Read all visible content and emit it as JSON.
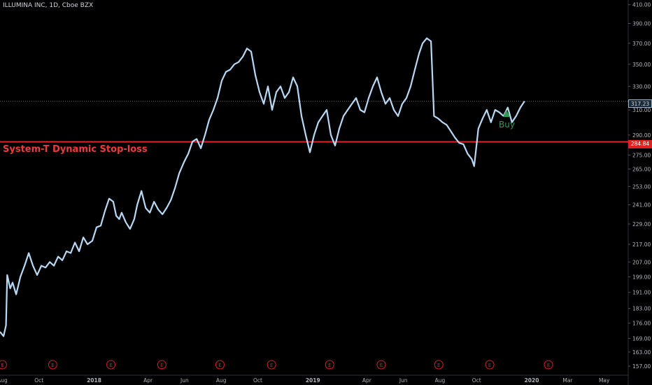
{
  "header": {
    "title": "ILLUMINA INC, 1D, Cboe BZX"
  },
  "annotations": {
    "stop_label": "System-T Dynamic Stop-loss",
    "buy_label": "Buy",
    "current_price_label": "317.23",
    "stop_price_label": "284.84"
  },
  "colors": {
    "background": "#000000",
    "price_line": "#b7d9f5",
    "stop_line": "#e02424",
    "buy": "#2e9e4f",
    "earnings": "#d22222",
    "axis_text": "#b2b5be"
  },
  "chart_data": {
    "type": "line",
    "title": "ILLUMINA INC, 1D, Cboe BZX",
    "xlabel": "",
    "ylabel": "",
    "scale": "log",
    "ylim": [
      155,
      412
    ],
    "xlim": [
      "2017-07-28",
      "2020-06-10"
    ],
    "x_ticks": [
      {
        "date": "2017-08-01",
        "label": "Aug"
      },
      {
        "date": "2017-10-01",
        "label": "Oct"
      },
      {
        "date": "2018-01-01",
        "label": "2018"
      },
      {
        "date": "2018-04-01",
        "label": "Apr"
      },
      {
        "date": "2018-06-01",
        "label": "Jun"
      },
      {
        "date": "2018-08-01",
        "label": "Aug"
      },
      {
        "date": "2018-10-01",
        "label": "Oct"
      },
      {
        "date": "2019-01-01",
        "label": "2019"
      },
      {
        "date": "2019-04-01",
        "label": "Apr"
      },
      {
        "date": "2019-06-01",
        "label": "Jun"
      },
      {
        "date": "2019-08-01",
        "label": "Aug"
      },
      {
        "date": "2019-10-01",
        "label": "Oct"
      },
      {
        "date": "2020-01-01",
        "label": "2020"
      },
      {
        "date": "2020-03-01",
        "label": "Mar"
      },
      {
        "date": "2020-05-01",
        "label": "May"
      }
    ],
    "y_ticks": [
      157.0,
      163.0,
      169.0,
      176.0,
      183.0,
      191.0,
      199.0,
      207.0,
      217.0,
      229.0,
      241.0,
      253.0,
      265.0,
      275.0,
      290.0,
      310.0,
      330.0,
      350.0,
      370.0,
      390.0,
      410.0
    ],
    "series": [
      {
        "values": [
          [
            "2017-07-28",
            172
          ],
          [
            "2017-08-03",
            170
          ],
          [
            "2017-08-07",
            175
          ],
          [
            "2017-08-09",
            200
          ],
          [
            "2017-08-14",
            193
          ],
          [
            "2017-08-18",
            196
          ],
          [
            "2017-08-24",
            190
          ],
          [
            "2017-08-31",
            199
          ],
          [
            "2017-09-07",
            205
          ],
          [
            "2017-09-14",
            212
          ],
          [
            "2017-09-21",
            205
          ],
          [
            "2017-09-28",
            200
          ],
          [
            "2017-10-05",
            205
          ],
          [
            "2017-10-12",
            204
          ],
          [
            "2017-10-19",
            207
          ],
          [
            "2017-10-26",
            205
          ],
          [
            "2017-11-02",
            210
          ],
          [
            "2017-11-09",
            208
          ],
          [
            "2017-11-16",
            213
          ],
          [
            "2017-11-23",
            212
          ],
          [
            "2017-11-30",
            218
          ],
          [
            "2017-12-07",
            213
          ],
          [
            "2017-12-14",
            221
          ],
          [
            "2017-12-21",
            217
          ],
          [
            "2017-12-29",
            219
          ],
          [
            "2018-01-05",
            227
          ],
          [
            "2018-01-12",
            228
          ],
          [
            "2018-01-19",
            237
          ],
          [
            "2018-01-26",
            245
          ],
          [
            "2018-02-02",
            243
          ],
          [
            "2018-02-07",
            234
          ],
          [
            "2018-02-12",
            232
          ],
          [
            "2018-02-16",
            236
          ],
          [
            "2018-02-23",
            230
          ],
          [
            "2018-03-02",
            226
          ],
          [
            "2018-03-09",
            232
          ],
          [
            "2018-03-14",
            241
          ],
          [
            "2018-03-21",
            250
          ],
          [
            "2018-03-28",
            239
          ],
          [
            "2018-04-04",
            236
          ],
          [
            "2018-04-11",
            243
          ],
          [
            "2018-04-18",
            238
          ],
          [
            "2018-04-25",
            235
          ],
          [
            "2018-05-02",
            239
          ],
          [
            "2018-05-09",
            244
          ],
          [
            "2018-05-16",
            252
          ],
          [
            "2018-05-23",
            262
          ],
          [
            "2018-05-31",
            270
          ],
          [
            "2018-06-07",
            276
          ],
          [
            "2018-06-14",
            285
          ],
          [
            "2018-06-21",
            287
          ],
          [
            "2018-06-28",
            280
          ],
          [
            "2018-07-05",
            290
          ],
          [
            "2018-07-12",
            302
          ],
          [
            "2018-07-19",
            310
          ],
          [
            "2018-07-26",
            320
          ],
          [
            "2018-08-02",
            335
          ],
          [
            "2018-08-09",
            343
          ],
          [
            "2018-08-16",
            345
          ],
          [
            "2018-08-23",
            350
          ],
          [
            "2018-08-30",
            352
          ],
          [
            "2018-09-06",
            357
          ],
          [
            "2018-09-13",
            365
          ],
          [
            "2018-09-20",
            362
          ],
          [
            "2018-09-27",
            340
          ],
          [
            "2018-10-04",
            325
          ],
          [
            "2018-10-11",
            315
          ],
          [
            "2018-10-18",
            330
          ],
          [
            "2018-10-25",
            310
          ],
          [
            "2018-11-01",
            325
          ],
          [
            "2018-11-08",
            330
          ],
          [
            "2018-11-15",
            320
          ],
          [
            "2018-11-22",
            325
          ],
          [
            "2018-11-29",
            338
          ],
          [
            "2018-12-06",
            330
          ],
          [
            "2018-12-13",
            305
          ],
          [
            "2018-12-20",
            290
          ],
          [
            "2018-12-27",
            277
          ],
          [
            "2019-01-03",
            290
          ],
          [
            "2019-01-10",
            300
          ],
          [
            "2019-01-17",
            305
          ],
          [
            "2019-01-24",
            310
          ],
          [
            "2019-01-31",
            290
          ],
          [
            "2019-02-07",
            282
          ],
          [
            "2019-02-14",
            295
          ],
          [
            "2019-02-21",
            305
          ],
          [
            "2019-02-28",
            310
          ],
          [
            "2019-03-07",
            315
          ],
          [
            "2019-03-14",
            320
          ],
          [
            "2019-03-21",
            310
          ],
          [
            "2019-03-28",
            308
          ],
          [
            "2019-04-04",
            320
          ],
          [
            "2019-04-11",
            330
          ],
          [
            "2019-04-18",
            338
          ],
          [
            "2019-04-25",
            325
          ],
          [
            "2019-05-02",
            315
          ],
          [
            "2019-05-09",
            320
          ],
          [
            "2019-05-16",
            310
          ],
          [
            "2019-05-23",
            305
          ],
          [
            "2019-05-30",
            315
          ],
          [
            "2019-06-06",
            320
          ],
          [
            "2019-06-13",
            330
          ],
          [
            "2019-06-20",
            345
          ],
          [
            "2019-06-27",
            360
          ],
          [
            "2019-07-03",
            370
          ],
          [
            "2019-07-10",
            375
          ],
          [
            "2019-07-17",
            372
          ],
          [
            "2019-07-22",
            305
          ],
          [
            "2019-07-29",
            303
          ],
          [
            "2019-08-05",
            300
          ],
          [
            "2019-08-12",
            298
          ],
          [
            "2019-08-19",
            293
          ],
          [
            "2019-08-26",
            288
          ],
          [
            "2019-09-02",
            284
          ],
          [
            "2019-09-09",
            283
          ],
          [
            "2019-09-16",
            276
          ],
          [
            "2019-09-23",
            272
          ],
          [
            "2019-09-27",
            267
          ],
          [
            "2019-10-04",
            295
          ],
          [
            "2019-10-11",
            303
          ],
          [
            "2019-10-18",
            310
          ],
          [
            "2019-10-25",
            300
          ],
          [
            "2019-11-01",
            310
          ],
          [
            "2019-11-08",
            308
          ],
          [
            "2019-11-15",
            305
          ],
          [
            "2019-11-22",
            312
          ],
          [
            "2019-11-29",
            300
          ],
          [
            "2019-12-06",
            305
          ],
          [
            "2019-12-13",
            312
          ],
          [
            "2019-12-20",
            317.23
          ]
        ]
      }
    ],
    "reference_lines": [
      {
        "label": "System-T Dynamic Stop-loss",
        "y": 284.84
      },
      {
        "label": "317.23",
        "y": 317.23
      }
    ],
    "markers": [
      {
        "type": "buy",
        "label": "Buy",
        "date": "2019-12-16"
      }
    ],
    "earnings_markers": {
      "label": "E",
      "dates": [
        "2017-08-01",
        "2017-10-24",
        "2018-01-29",
        "2018-04-24",
        "2018-07-30",
        "2018-10-24",
        "2019-01-29",
        "2019-04-25",
        "2019-07-30",
        "2019-10-23",
        "2020-01-29"
      ]
    }
  }
}
